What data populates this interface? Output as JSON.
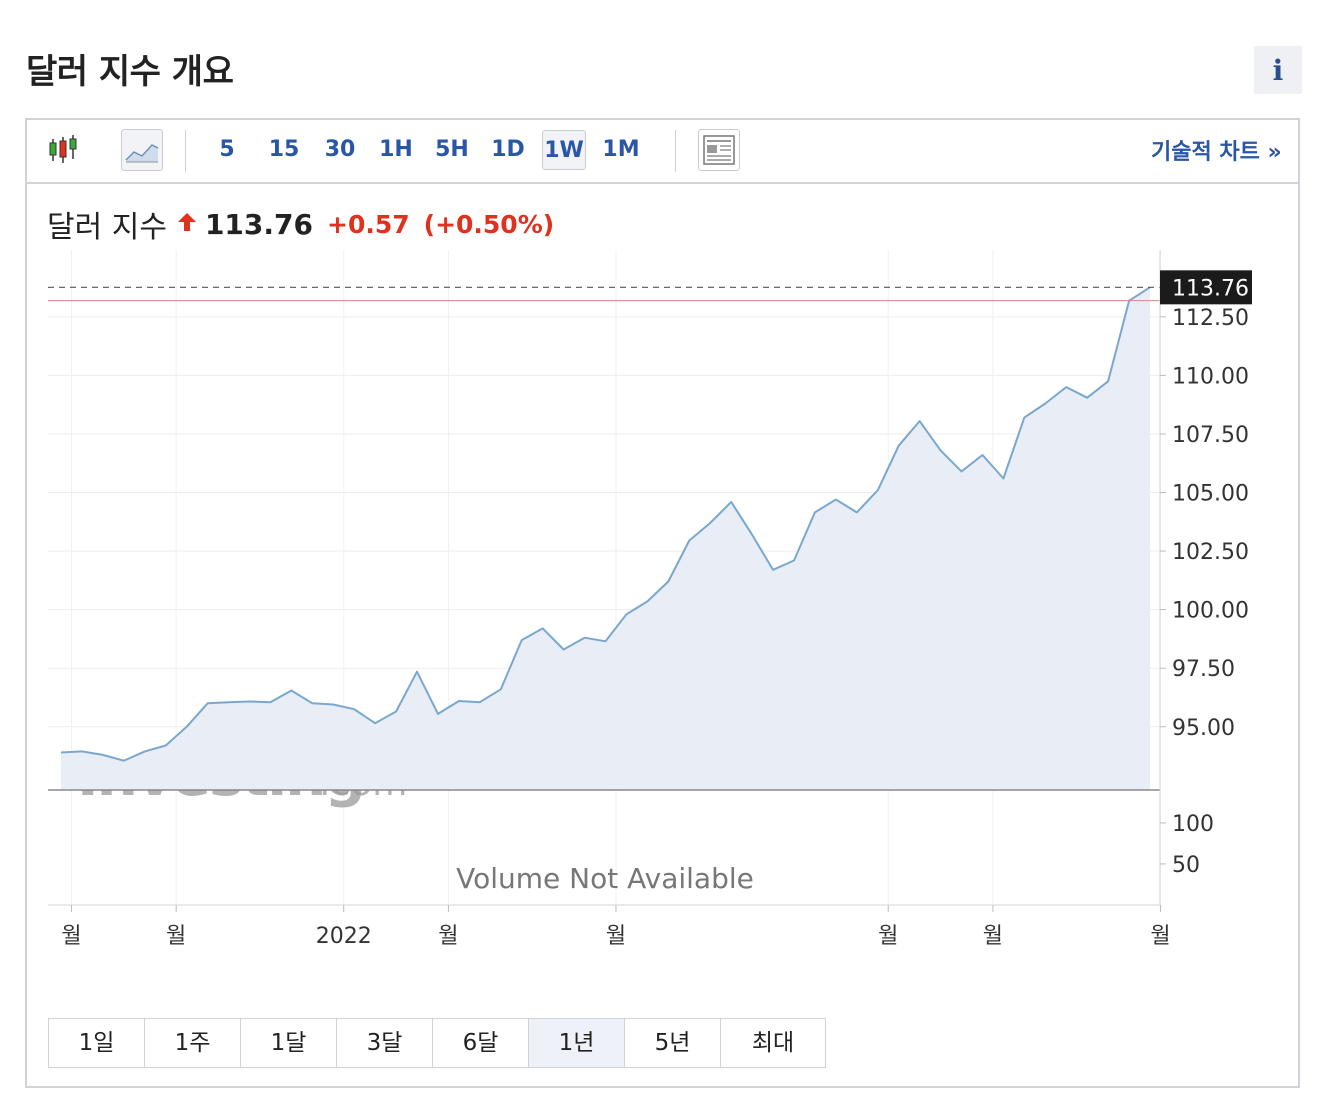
{
  "header": {
    "title": "달러 지수 개요",
    "info_label": "i"
  },
  "toolbar": {
    "timeframes": [
      {
        "label": "5",
        "active": false
      },
      {
        "label": "15",
        "active": false
      },
      {
        "label": "30",
        "active": false
      },
      {
        "label": "1H",
        "active": false
      },
      {
        "label": "5H",
        "active": false
      },
      {
        "label": "1D",
        "active": false
      },
      {
        "label": "1W",
        "active": true
      },
      {
        "label": "1M",
        "active": false
      }
    ],
    "technical_link": "기술적 차트 »"
  },
  "quote": {
    "name": "달러 지수",
    "price": "113.76",
    "change": "+0.57",
    "change_pct": "(+0.50%)",
    "direction": "up",
    "color_up": "#e0301e"
  },
  "watermark": {
    "brand": "Investing",
    "suffix": ".com"
  },
  "volume": {
    "message": "Volume Not Available"
  },
  "ranges": [
    {
      "label": "1일",
      "active": false
    },
    {
      "label": "1주",
      "active": false
    },
    {
      "label": "1달",
      "active": false
    },
    {
      "label": "3달",
      "active": false
    },
    {
      "label": "6달",
      "active": false
    },
    {
      "label": "1년",
      "active": true
    },
    {
      "label": "5년",
      "active": false
    },
    {
      "label": "최대",
      "active": false
    }
  ],
  "chart_data": {
    "type": "area",
    "title": "달러 지수",
    "line_color": "#7aa7cf",
    "fill_color": "#e9eef6",
    "ylim": [
      92.3,
      114.5
    ],
    "y_ticks": [
      "112.50",
      "110.00",
      "107.50",
      "105.00",
      "102.50",
      "100.00",
      "97.50",
      "95.00"
    ],
    "y_tick_values": [
      112.5,
      110,
      107.5,
      105,
      102.5,
      100,
      97.5,
      95
    ],
    "last_value": 113.76,
    "last_label": "113.76",
    "ref_line_value": 113.19,
    "volume_ticks": [
      "100",
      "50"
    ],
    "volume_tick_values": [
      100,
      50
    ],
    "volume_ylim": [
      0,
      140
    ],
    "x_labels": [
      {
        "index": 0.5,
        "label": "월"
      },
      {
        "index": 5.5,
        "label": "월"
      },
      {
        "index": 13.5,
        "label": "2022"
      },
      {
        "index": 18.5,
        "label": "월"
      },
      {
        "index": 26.5,
        "label": "월"
      },
      {
        "index": 39.5,
        "label": "월"
      },
      {
        "index": 44.5,
        "label": "월"
      },
      {
        "index": 52.5,
        "label": "월"
      }
    ],
    "values": [
      93.9,
      93.95,
      93.8,
      93.55,
      93.95,
      94.2,
      95.0,
      96.0,
      96.05,
      96.08,
      96.05,
      96.55,
      96.0,
      95.95,
      95.75,
      95.15,
      95.65,
      97.35,
      95.55,
      96.1,
      96.05,
      96.6,
      98.7,
      99.2,
      98.3,
      98.8,
      98.65,
      99.8,
      100.35,
      101.2,
      102.95,
      103.7,
      104.6,
      103.2,
      101.7,
      102.1,
      104.15,
      104.7,
      104.15,
      105.1,
      107.0,
      108.05,
      106.8,
      105.9,
      106.6,
      105.6,
      108.2,
      108.8,
      109.5,
      109.05,
      109.75,
      113.19,
      113.76
    ]
  }
}
